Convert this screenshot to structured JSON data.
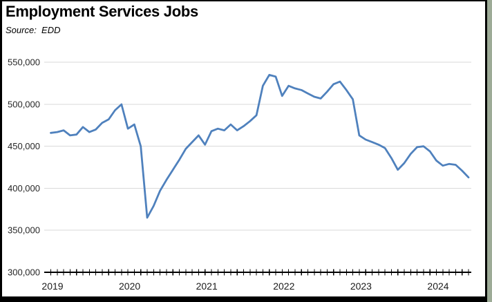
{
  "title": "Employment Services Jobs",
  "source_label": "Source:  EDD",
  "chart_data": {
    "type": "line",
    "title": "Employment Services Jobs",
    "source": "EDD",
    "x_unit": "month",
    "x": [
      "2019-01",
      "2019-02",
      "2019-03",
      "2019-04",
      "2019-05",
      "2019-06",
      "2019-07",
      "2019-08",
      "2019-09",
      "2019-10",
      "2019-11",
      "2019-12",
      "2020-01",
      "2020-02",
      "2020-03",
      "2020-04",
      "2020-05",
      "2020-06",
      "2020-07",
      "2020-08",
      "2020-09",
      "2020-10",
      "2020-11",
      "2020-12",
      "2021-01",
      "2021-02",
      "2021-03",
      "2021-04",
      "2021-05",
      "2021-06",
      "2021-07",
      "2021-08",
      "2021-09",
      "2021-10",
      "2021-11",
      "2021-12",
      "2022-01",
      "2022-02",
      "2022-03",
      "2022-04",
      "2022-05",
      "2022-06",
      "2022-07",
      "2022-08",
      "2022-09",
      "2022-10",
      "2022-11",
      "2022-12",
      "2023-01",
      "2023-02",
      "2023-03",
      "2023-04",
      "2023-05",
      "2023-06",
      "2023-07",
      "2023-08",
      "2023-09",
      "2023-10",
      "2023-11",
      "2023-12",
      "2024-01",
      "2024-02",
      "2024-03",
      "2024-04",
      "2024-05",
      "2024-06"
    ],
    "values": [
      466000,
      467000,
      469000,
      463000,
      464000,
      473000,
      467000,
      470000,
      478000,
      482000,
      493000,
      500000,
      471000,
      476000,
      450000,
      365000,
      379000,
      397000,
      410000,
      422000,
      434000,
      447000,
      455000,
      463000,
      452000,
      468000,
      471000,
      469000,
      476000,
      469000,
      474000,
      480000,
      487000,
      522000,
      535000,
      533000,
      510000,
      522000,
      519000,
      517000,
      513000,
      509000,
      507000,
      515000,
      524000,
      527000,
      517000,
      506000,
      463000,
      458000,
      455000,
      452000,
      448000,
      436000,
      422000,
      430000,
      441000,
      449000,
      450000,
      444000,
      433000,
      427000,
      429000,
      428000,
      421000,
      413000
    ],
    "ylim": [
      300000,
      550000
    ],
    "y_ticks": [
      300000,
      350000,
      400000,
      450000,
      500000,
      550000
    ],
    "y_tick_labels": [
      "300,000",
      "350,000",
      "400,000",
      "450,000",
      "500,000",
      "550,000"
    ],
    "x_year_labels": [
      "2019",
      "2020",
      "2021",
      "2022",
      "2023",
      "2024"
    ],
    "legend": "none",
    "grid": "horizontal",
    "line_color": "#4F81BD",
    "gridline_color": "#D9D9D9",
    "axis_color": "#000000",
    "text_color": "#262626"
  }
}
